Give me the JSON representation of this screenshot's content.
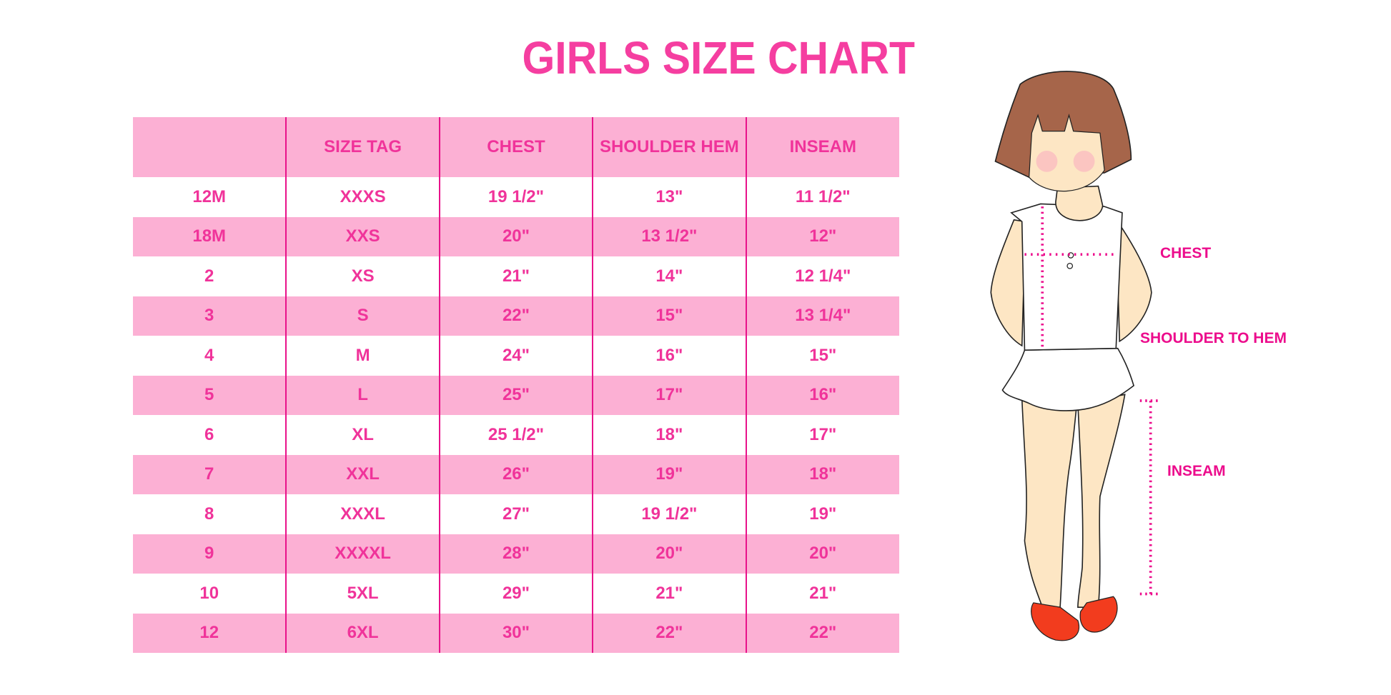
{
  "title": "GIRLS SIZE CHART",
  "colors": {
    "accent": "#f53ea0",
    "row_fill": "#fcb0d4",
    "divider": "#e8128a",
    "label": "#ec0c8c"
  },
  "table": {
    "headers": [
      "",
      "SIZE TAG",
      "CHEST",
      "SHOULDER HEM",
      "INSEAM"
    ],
    "rows": [
      [
        "12M",
        "XXXS",
        "19 1/2\"",
        "13\"",
        "11 1/2\""
      ],
      [
        "18M",
        "XXS",
        "20\"",
        "13 1/2\"",
        "12\""
      ],
      [
        "2",
        "XS",
        "21\"",
        "14\"",
        "12 1/4\""
      ],
      [
        "3",
        "S",
        "22\"",
        "15\"",
        "13 1/4\""
      ],
      [
        "4",
        "M",
        "24\"",
        "16\"",
        "15\""
      ],
      [
        "5",
        "L",
        "25\"",
        "17\"",
        "16\""
      ],
      [
        "6",
        "XL",
        "25 1/2\"",
        "18\"",
        "17\""
      ],
      [
        "7",
        "XXL",
        "26\"",
        "19\"",
        "18\""
      ],
      [
        "8",
        "XXXL",
        "27\"",
        "19 1/2\"",
        "19\""
      ],
      [
        "9",
        "XXXXL",
        "28\"",
        "20\"",
        "20\""
      ],
      [
        "10",
        "5XL",
        "29\"",
        "21\"",
        "21\""
      ],
      [
        "12",
        "6XL",
        "30\"",
        "22\"",
        "22\""
      ]
    ]
  },
  "figure": {
    "labels": {
      "chest": "CHEST",
      "shoulder_to_hem": "SHOULDER TO HEM",
      "inseam": "INSEAM"
    }
  }
}
